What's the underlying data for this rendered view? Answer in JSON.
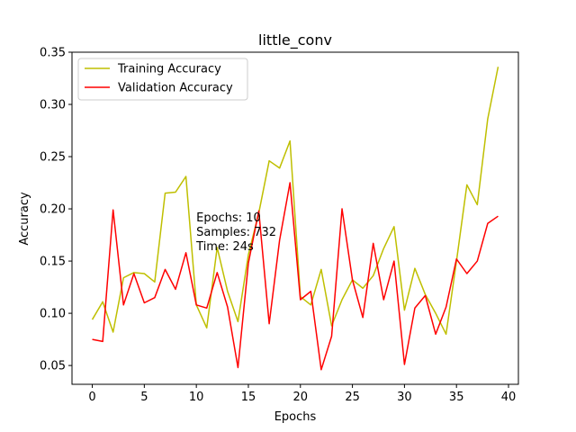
{
  "chart_data": {
    "type": "line",
    "title": "little_conv",
    "xlabel": "Epochs",
    "ylabel": "Accuracy",
    "xlim": [
      -1.95,
      40.95
    ],
    "ylim": [
      0.032,
      0.35
    ],
    "xticks": [
      0,
      5,
      10,
      15,
      20,
      25,
      30,
      35,
      40
    ],
    "xtick_labels": [
      "0",
      "5",
      "10",
      "15",
      "20",
      "25",
      "30",
      "35",
      "40"
    ],
    "yticks": [
      0.05,
      0.1,
      0.15,
      0.2,
      0.25,
      0.3,
      0.35
    ],
    "ytick_labels": [
      "0.05",
      "0.10",
      "0.15",
      "0.20",
      "0.25",
      "0.30",
      "0.35"
    ],
    "grid": false,
    "legend_position": "upper-left",
    "annotation": [
      "Epochs: 10",
      "Samples: 732",
      "Time: 24s"
    ],
    "annotation_at": [
      10,
      0.188
    ],
    "x": [
      0,
      1,
      2,
      3,
      4,
      5,
      6,
      7,
      8,
      9,
      10,
      11,
      12,
      13,
      14,
      15,
      16,
      17,
      18,
      19,
      20,
      21,
      22,
      23,
      24,
      25,
      26,
      27,
      28,
      29,
      30,
      31,
      32,
      33,
      34,
      35,
      36,
      37,
      38,
      39
    ],
    "series": [
      {
        "name": "Training Accuracy",
        "color": "#bfbf00",
        "values": [
          0.094,
          0.111,
          0.082,
          0.134,
          0.139,
          0.138,
          0.13,
          0.215,
          0.216,
          0.231,
          0.108,
          0.086,
          0.163,
          0.121,
          0.092,
          0.156,
          0.196,
          0.246,
          0.239,
          0.265,
          0.116,
          0.108,
          0.142,
          0.088,
          0.113,
          0.132,
          0.124,
          0.136,
          0.162,
          0.183,
          0.103,
          0.143,
          0.118,
          0.1,
          0.08,
          0.15,
          0.223,
          0.204,
          0.286,
          0.336
        ]
      },
      {
        "name": "Validation Accuracy",
        "color": "#ff0000",
        "values": [
          0.075,
          0.073,
          0.199,
          0.108,
          0.138,
          0.11,
          0.115,
          0.142,
          0.123,
          0.158,
          0.108,
          0.105,
          0.139,
          0.106,
          0.048,
          0.148,
          0.198,
          0.09,
          0.17,
          0.225,
          0.113,
          0.121,
          0.046,
          0.078,
          0.2,
          0.132,
          0.096,
          0.167,
          0.113,
          0.15,
          0.051,
          0.105,
          0.117,
          0.08,
          0.106,
          0.152,
          0.138,
          0.15,
          0.186,
          0.193
        ]
      }
    ]
  }
}
